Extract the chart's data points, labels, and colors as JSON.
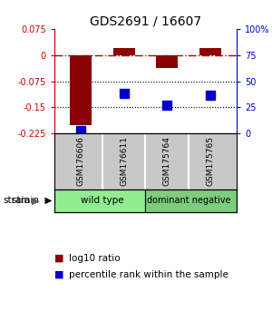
{
  "title": "GDS2691 / 16607",
  "samples": [
    "GSM176606",
    "GSM176611",
    "GSM175764",
    "GSM175765"
  ],
  "log10_ratio": [
    -0.2,
    0.02,
    -0.038,
    0.02
  ],
  "percentile_rank": [
    3,
    38,
    27,
    37
  ],
  "ylim_left": [
    -0.225,
    0.075
  ],
  "ylim_right": [
    0,
    100
  ],
  "yticks_left": [
    0.075,
    0,
    -0.075,
    -0.15,
    -0.225
  ],
  "ytick_labels_left": [
    "0.075",
    "0",
    "-0.075",
    "-0.15",
    "-0.225"
  ],
  "yticks_right": [
    100,
    75,
    50,
    25,
    0
  ],
  "ytick_labels_right": [
    "100%",
    "75",
    "50",
    "25",
    "0"
  ],
  "bar_color": "#8B0000",
  "dot_color": "#0000CC",
  "bar_width": 0.5,
  "dot_size": 50,
  "background_color": "#ffffff",
  "dashed_line_color": "#AA0000",
  "dotted_line_color": "#000000",
  "left_axis_color": "#CC0000",
  "right_axis_color": "#0000CC",
  "title_fontsize": 10,
  "tick_fontsize": 7,
  "legend_fontsize": 7.5,
  "strain_label_fontsize": 7.5,
  "sample_fontsize": 6.5,
  "sample_bg_color": "#C8C8C8",
  "wt_color": "#90EE90",
  "dn_color": "#7CCD7C"
}
